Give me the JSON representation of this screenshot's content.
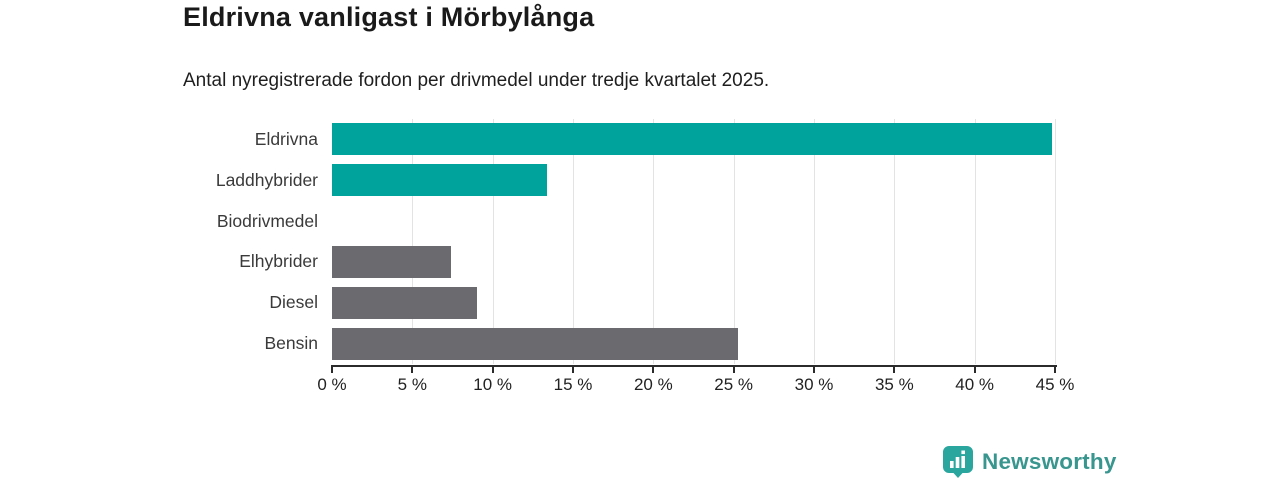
{
  "header": {
    "title": "Eldrivna vanligast i Mörbylånga",
    "subtitle": "Antal nyregistrerade fordon per drivmedel under tredje kvartalet 2025."
  },
  "chart_data": {
    "type": "bar",
    "orientation": "horizontal",
    "title": "Eldrivna vanligast i Mörbylånga",
    "subtitle": "Antal nyregistrerade fordon per drivmedel under tredje kvartalet 2025.",
    "categories": [
      "Eldrivna",
      "Laddhybrider",
      "Biodrivmedel",
      "Elhybrider",
      "Diesel",
      "Bensin"
    ],
    "values": [
      44.8,
      13.4,
      0,
      7.4,
      9.0,
      25.3
    ],
    "unit": "%",
    "bar_colors": [
      "#00a39b",
      "#00a39b",
      "#6b6b6f",
      "#6b6b6f",
      "#6b6b6f",
      "#6b6b6f"
    ],
    "xlim": [
      0,
      45
    ],
    "x_ticks": [
      0,
      5,
      10,
      15,
      20,
      25,
      30,
      35,
      40,
      45
    ],
    "x_tick_labels": [
      "0 %",
      "5 %",
      "10 %",
      "15 %",
      "20 %",
      "25 %",
      "30 %",
      "35 %",
      "40 %",
      "45 %"
    ],
    "grid": "vertical-gridlines-on",
    "legend": "none",
    "xlabel": "",
    "ylabel": ""
  },
  "colors": {
    "accent_teal": "#00a39b",
    "neutral_gray": "#6b6b6f",
    "gridline": "#e3e3e3",
    "axis": "#2b2b2b"
  },
  "footer": {
    "brand": "Newsworthy",
    "brand_color": "#38968f",
    "logo_icon": "bar-chart-speech-bubble-icon"
  }
}
